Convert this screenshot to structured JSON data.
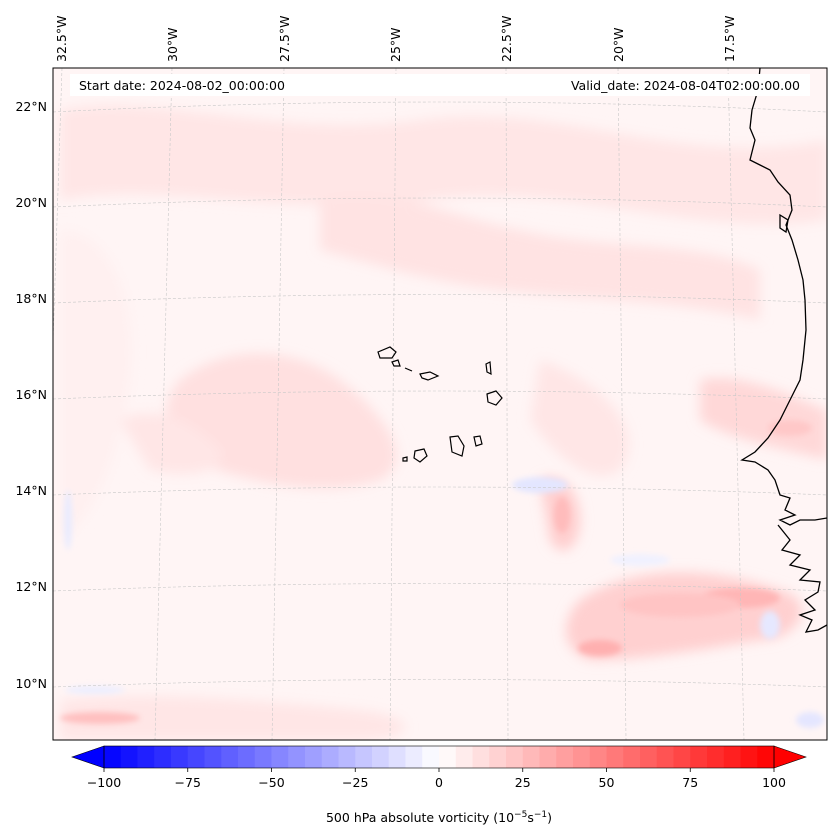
{
  "map": {
    "start_date": "Start date: 2024-08-02_00:00:00",
    "valid_date": "Valid_date: 2024-08-04T02:00:00.00",
    "lon_labels": [
      "32.5°W",
      "30°W",
      "27.5°W",
      "25°W",
      "22.5°W",
      "20°W",
      "17.5°W"
    ],
    "lat_labels": [
      "22°N",
      "20°N",
      "18°N",
      "16°N",
      "14°N",
      "12°N",
      "10°N"
    ],
    "colors": {
      "coast": "#000000",
      "grid": "#b0b0b0",
      "neg": "#0000ff",
      "pos": "#ff0000"
    }
  },
  "colorbar": {
    "ticks": [
      "−100",
      "−75",
      "−50",
      "−25",
      "0",
      "25",
      "50",
      "75",
      "100"
    ],
    "tick_values": [
      -100,
      -75,
      -50,
      -25,
      0,
      25,
      50,
      75,
      100
    ],
    "min": -100,
    "max": 100,
    "step": 5,
    "label_main": "500 hPa absolute vorticity (10",
    "label_exp1": "−5",
    "label_mid": "s",
    "label_exp2": "−1",
    "label_end": ")"
  }
}
